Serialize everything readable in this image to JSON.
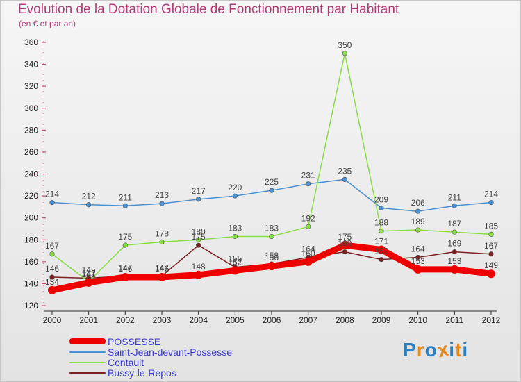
{
  "header": {
    "title": "Evolution de la Dotation Globale de Fonctionnement par Habitant",
    "subtitle": "(en € et par an)"
  },
  "logo": {
    "letters": [
      "P",
      "r",
      "o",
      "x",
      "i",
      "t",
      "i"
    ],
    "colors": [
      "#2a7fc0",
      "#e58a1f",
      "#2a7fc0",
      "#e58a1f",
      "#2a7fc0",
      "#e58a1f",
      "#2a7fc0"
    ]
  },
  "chart_data": {
    "type": "line",
    "title": "Evolution de la Dotation Globale de Fonctionnement par Habitant",
    "subtitle": "(en € et par an)",
    "xlabel": "",
    "ylabel": "",
    "x": [
      "2000",
      "2001",
      "2002",
      "2003",
      "2004",
      "2005",
      "2006",
      "2007",
      "2008",
      "2009",
      "2010",
      "2011",
      "2012"
    ],
    "ylim": [
      120,
      360
    ],
    "yticks": [
      120,
      140,
      160,
      180,
      200,
      220,
      240,
      260,
      280,
      300,
      320,
      340,
      360
    ],
    "legend_position": "bottom-left",
    "series": [
      {
        "name": "POSSESSE",
        "color": "#ee0000",
        "values": [
          134,
          141,
          146,
          146,
          148,
          152,
          156,
          160,
          175,
          171,
          153,
          153,
          149
        ],
        "labels": [
          "134",
          "141",
          "146",
          "146",
          "148",
          "152",
          "156",
          "160",
          "175",
          "171",
          "153",
          "153",
          "149"
        ]
      },
      {
        "name": "Saint-Jean-devant-Possesse",
        "color": "#4a8fd0",
        "values": [
          214,
          212,
          211,
          213,
          217,
          220,
          225,
          231,
          235,
          209,
          206,
          211,
          214
        ],
        "labels": [
          "214",
          "212",
          "211",
          "213",
          "217",
          "220",
          "225",
          "231",
          "235",
          "209",
          "206",
          "211",
          "214"
        ]
      },
      {
        "name": "Contault",
        "color": "#88dd44",
        "values": [
          167,
          142,
          175,
          178,
          180,
          183,
          183,
          192,
          350,
          188,
          189,
          187,
          185
        ],
        "labels": [
          "167",
          "142",
          "175",
          "178",
          "180",
          "183",
          "183",
          "192",
          "350",
          "188",
          "189",
          "187",
          "185"
        ]
      },
      {
        "name": "Bussy-le-Repos",
        "color": "#7a2020",
        "values": [
          146,
          145,
          147,
          147,
          175,
          155,
          158,
          164,
          169,
          162,
          164,
          169,
          167
        ],
        "labels": [
          "146",
          "145",
          "147",
          "147",
          "175",
          "155",
          "158",
          "164",
          "169",
          "162",
          "164",
          "169",
          "167"
        ]
      }
    ]
  }
}
